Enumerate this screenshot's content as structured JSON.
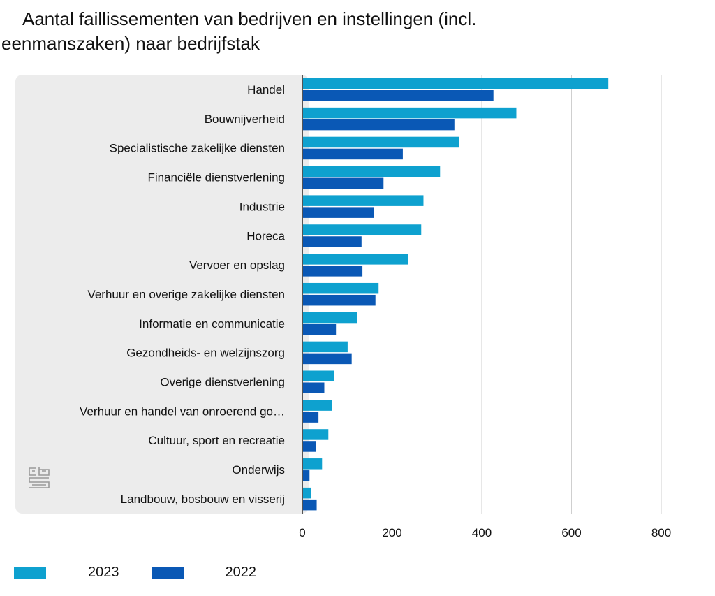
{
  "title": {
    "line1": "Aantal faillissementen van bedrijven en instellingen (incl.",
    "line2": "eenmanszaken) naar bedrijfstak"
  },
  "logo_text": "cbs",
  "colors": {
    "series_2023": "#0ea1cf",
    "series_2022": "#0a58b5",
    "panel": "#ececec",
    "grid": "#cfcfcf",
    "axis": "#555555"
  },
  "chart_data": {
    "type": "bar",
    "orientation": "horizontal",
    "title": "Aantal faillissementen van bedrijven en instellingen (incl. eenmanszaken) naar bedrijfstak",
    "categories": [
      "Handel",
      "Bouwnijverheid",
      "Specialistische zakelijke diensten",
      "Financiële dienstverlening",
      "Industrie",
      "Horeca",
      "Vervoer en opslag",
      "Verhuur en overige zakelijke diensten",
      "Informatie en communicatie",
      "Gezondheids- en welzijnszorg",
      "Overige dienstverlening",
      "Verhuur en handel van onroerend go…",
      "Cultuur, sport en recreatie",
      "Onderwijs",
      "Landbouw, bosbouw en visserij"
    ],
    "series": [
      {
        "name": "2023",
        "values": [
          682,
          477,
          349,
          307,
          270,
          265,
          236,
          170,
          122,
          101,
          71,
          66,
          58,
          44,
          20
        ]
      },
      {
        "name": "2022",
        "values": [
          426,
          339,
          224,
          181,
          160,
          132,
          134,
          163,
          75,
          110,
          49,
          36,
          31,
          16,
          32
        ]
      }
    ],
    "xlim": [
      0,
      800
    ],
    "xticks": [
      0,
      200,
      400,
      600,
      800
    ],
    "xticklabels": [
      "0",
      "200",
      "400",
      "600",
      "800"
    ],
    "grid": true,
    "legend_position": "bottom-left"
  }
}
